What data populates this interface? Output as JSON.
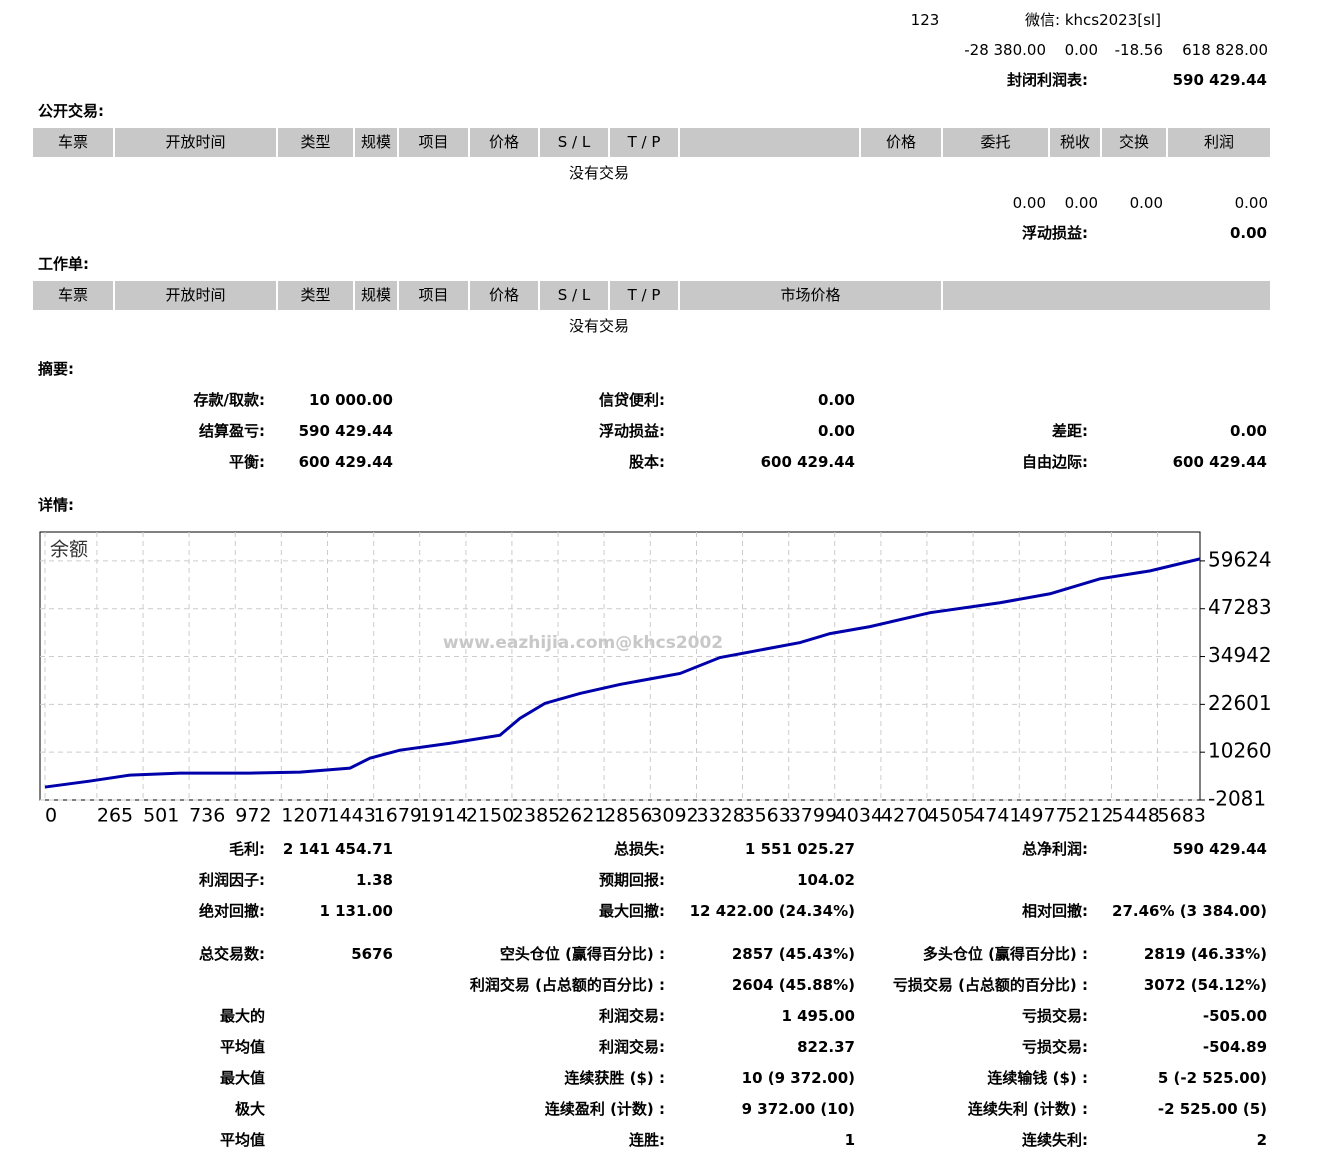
{
  "header": {
    "code": "123",
    "wechat": "微信: khcs2023[sl]",
    "values": [
      "-28 380.00",
      "0.00",
      "-18.56",
      "618 828.00"
    ],
    "closed_label": "封闭利润表:",
    "closed_value": "590 429.44"
  },
  "open_trades": {
    "title": "公开交易:",
    "columns": [
      "车票",
      "开放时间",
      "类型",
      "规模",
      "项目",
      "价格",
      "S / L",
      "T / P",
      "价格",
      "委托",
      "税收",
      "交换",
      "利润"
    ],
    "empty": "没有交易",
    "totals": [
      "0.00",
      "0.00",
      "0.00",
      "0.00"
    ],
    "floating_label": "浮动损益:",
    "floating_value": "0.00"
  },
  "working_orders": {
    "title": "工作单:",
    "columns": [
      "车票",
      "开放时间",
      "类型",
      "规模",
      "项目",
      "价格",
      "S / L",
      "T / P",
      "市场价格"
    ],
    "empty": "没有交易"
  },
  "summary": {
    "title": "摘要:",
    "rows": [
      [
        [
          "存款/取款:",
          "10 000.00"
        ],
        [
          "信贷便利:",
          "0.00"
        ],
        null
      ],
      [
        [
          "结算盈亏:",
          "590 429.44"
        ],
        [
          "浮动损益:",
          "0.00"
        ],
        [
          "差距:",
          "0.00"
        ]
      ],
      [
        [
          "平衡:",
          "600 429.44"
        ],
        [
          "股本:",
          "600 429.44"
        ],
        [
          "自由边际:",
          "600 429.44"
        ]
      ]
    ]
  },
  "details": {
    "title": "详情:",
    "rows": [
      [
        [
          "毛利:",
          "2 141 454.71"
        ],
        [
          "总损失:",
          "1 551 025.27"
        ],
        [
          "总净利润:",
          "590 429.44"
        ]
      ],
      [
        [
          "利润因子:",
          "1.38"
        ],
        [
          "预期回报:",
          "104.02"
        ],
        null
      ],
      [
        [
          "绝对回撤:",
          "1 131.00"
        ],
        [
          "最大回撤:",
          "12 422.00 (24.34%)"
        ],
        [
          "相对回撤:",
          "27.46% (3 384.00)"
        ]
      ],
      [
        [
          "总交易数:",
          "5676"
        ],
        [
          "空头仓位 (赢得百分比) :",
          "2857 (45.43%)"
        ],
        [
          "多头仓位 (赢得百分比) :",
          "2819 (46.33%)"
        ]
      ],
      [
        null,
        [
          "利润交易 (占总额的百分比) :",
          "2604 (45.88%)"
        ],
        [
          "亏损交易 (占总额的百分比) :",
          "3072 (54.12%)"
        ]
      ],
      [
        [
          "最大的"
        ],
        [
          "利润交易:",
          "1 495.00"
        ],
        [
          "亏损交易:",
          "-505.00"
        ]
      ],
      [
        [
          "平均值"
        ],
        [
          "利润交易:",
          "822.37"
        ],
        [
          "亏损交易:",
          "-504.89"
        ]
      ],
      [
        [
          "最大值"
        ],
        [
          "连续获胜 ($) :",
          "10 (9 372.00)"
        ],
        [
          "连续输钱 ($) :",
          "5 (-2 525.00)"
        ]
      ],
      [
        [
          "极大"
        ],
        [
          "连续盈利 (计数) :",
          "9 372.00 (10)"
        ],
        [
          "连续失利 (计数) :",
          "-2 525.00 (5)"
        ]
      ],
      [
        [
          "平均值"
        ],
        [
          "连胜:",
          "1"
        ],
        [
          "连续失利:",
          "2"
        ]
      ]
    ]
  },
  "chart": {
    "type": "line",
    "label": "余额",
    "watermark": "www.eazhijia.com@khcs2002",
    "color": "#0000aa",
    "grid": true,
    "x": [
      0,
      230,
      434,
      690,
      1047,
      1303,
      1558,
      1660,
      1813,
      2069,
      2324,
      2426,
      2554,
      2733,
      2937,
      3244,
      3448,
      3857,
      4010,
      4214,
      4521,
      4878,
      5134,
      5389,
      5645,
      5900
    ],
    "values": [
      1261,
      2804,
      4346,
      4860,
      4860,
      5117,
      6146,
      8717,
      10774,
      12574,
      14631,
      19000,
      22858,
      25429,
      27743,
      30571,
      34686,
      38542,
      40856,
      42656,
      46256,
      48827,
      51141,
      54997,
      57054,
      60140
    ],
    "xlim": [
      0,
      5900
    ],
    "ylim": [
      -2081,
      67080
    ],
    "xticks": [
      0,
      265,
      501,
      736,
      972,
      1207,
      1443,
      1679,
      1914,
      2150,
      2385,
      2621,
      2856,
      3092,
      3328,
      3563,
      3799,
      4034,
      4270,
      4505,
      4741,
      4977,
      5212,
      5448,
      5683
    ],
    "yticks": [
      -2081,
      10260,
      22601,
      34942,
      47283,
      59624
    ]
  }
}
